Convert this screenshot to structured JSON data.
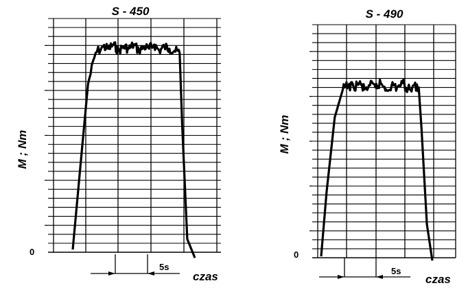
{
  "chart_data": [
    {
      "type": "line",
      "title": "S - 450",
      "ylabel": "M ; Nm",
      "xlabel": "czas",
      "zero_label": "0",
      "scale_label": "5s",
      "x": [
        0,
        1.5,
        3,
        4.5,
        6,
        7,
        8,
        9,
        10,
        11,
        12,
        13,
        14,
        15,
        16,
        17,
        18,
        19,
        20,
        21,
        21.5,
        22.5,
        24
      ],
      "y": [
        0,
        0.4,
        0.8,
        0.95,
        0.98,
        0.97,
        0.99,
        0.96,
        0.98,
        0.97,
        0.99,
        0.96,
        0.98,
        0.97,
        0.99,
        0.96,
        0.98,
        0.97,
        0.96,
        0.95,
        0.6,
        0.05,
        -0.04
      ]
    },
    {
      "type": "line",
      "title": "S - 490",
      "ylabel": "M ; Nm",
      "xlabel": "czas",
      "zero_label": "0",
      "scale_label": "5s",
      "x": [
        0,
        1,
        2.5,
        4,
        5,
        6,
        7,
        8,
        9,
        10,
        11,
        12,
        13,
        14,
        15,
        16,
        17,
        18,
        18.5,
        19.5,
        20.5
      ],
      "y": [
        0,
        0.3,
        0.65,
        0.78,
        0.8,
        0.79,
        0.81,
        0.78,
        0.8,
        0.79,
        0.81,
        0.78,
        0.8,
        0.79,
        0.81,
        0.78,
        0.8,
        0.79,
        0.6,
        0.15,
        -0.02
      ]
    }
  ]
}
